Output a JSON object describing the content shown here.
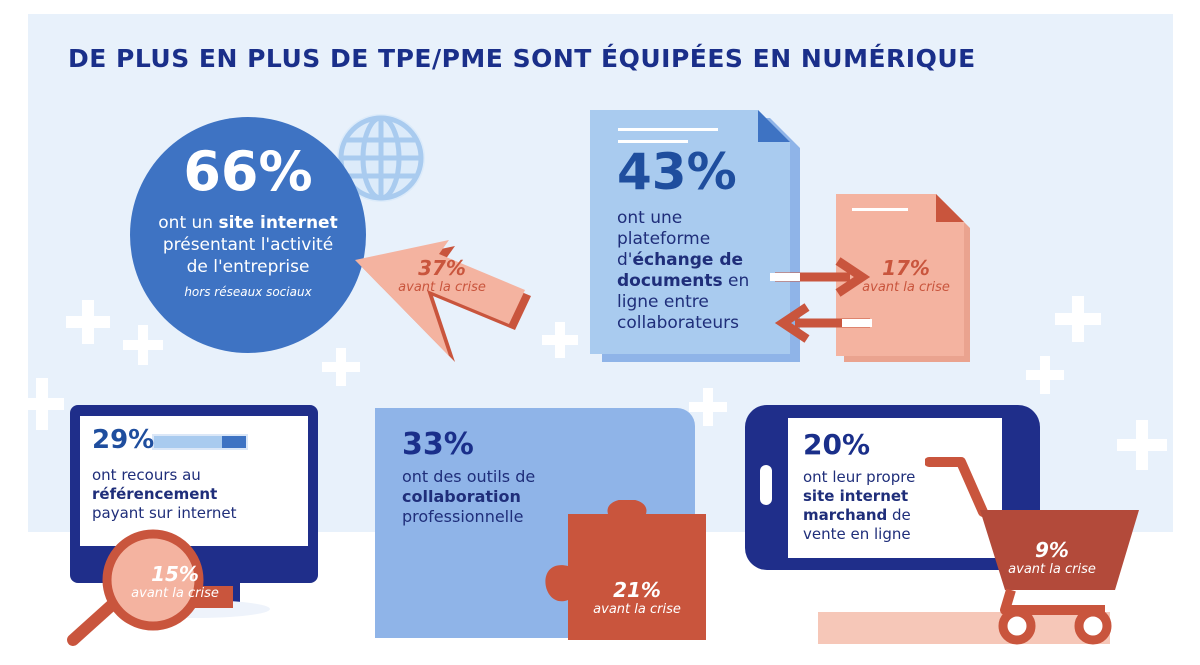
{
  "title": "DE PLUS EN PLUS DE TPE/PME SONT ÉQUIPÉES EN NUMÉRIQUE",
  "colors": {
    "navy": "#1a2f8a",
    "blue": "#3e73c3",
    "light_blue": "#a9cbef",
    "salmon": "#f4b3a0",
    "rust": "#c9553d",
    "background": "#e8f1fb"
  },
  "stats": {
    "site": {
      "value": "66%",
      "pre": "ont un ",
      "bold": "site internet",
      "line2": "présentant l'activité",
      "line3": "de l'entreprise",
      "note": "hors réseaux sociaux",
      "before_value": "37%",
      "before_label": "avant la crise"
    },
    "docs": {
      "value": "43%",
      "l1": "ont une",
      "l2": "plateforme",
      "l3_pre": "d'",
      "l3_bold": "échange de",
      "l4_bold": "documents",
      "l4_post": " en",
      "l5": "ligne entre",
      "l6": "collaborateurs",
      "before_value": "17%",
      "before_label": "avant la crise"
    },
    "ref": {
      "value": "29%",
      "l1": "ont recours au",
      "l2_bold": "référencement",
      "l3": "payant sur internet",
      "before_value": "15%",
      "before_label": "avant la crise"
    },
    "collab": {
      "value": "33%",
      "l1": "ont des outils de",
      "l2_bold": "collaboration",
      "l3": "professionnelle",
      "before_value": "21%",
      "before_label": "avant la crise"
    },
    "shop": {
      "value": "20%",
      "l1": "ont leur propre",
      "l2_bold": "site internet",
      "l3_bold": "marchand",
      "l3_post": " de",
      "l4": "vente en ligne",
      "before_value": "9%",
      "before_label": "avant la crise"
    }
  }
}
